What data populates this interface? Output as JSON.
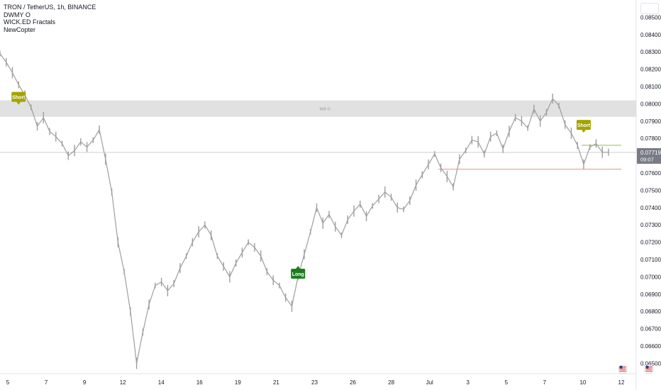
{
  "legend": {
    "symbol": "TRON / TetherUS, 1h, BINANCE",
    "indicator_1": "DWMY O",
    "indicator_2": "WICK.ED Fractals",
    "indicator_3": "NewCopter"
  },
  "zone": {
    "label": "IMB D",
    "low": 0.07925,
    "high": 0.0802,
    "color": "#dcdcdc"
  },
  "current_price": {
    "value": "0.07719",
    "countdown": "09:07",
    "price": 0.07719
  },
  "colors": {
    "candle": "#9e9e9e",
    "short_marker": "#a3a400",
    "long_marker": "#1b7d1f",
    "support_line": "#f28b8b",
    "resistance_line": "#8bc34a",
    "current_tag": "#787b86"
  },
  "chart_data": {
    "type": "line",
    "title": "TRON / TetherUS, 1h, BINANCE",
    "xlabel": "",
    "ylabel": "",
    "x_ticks": [
      "5",
      "7",
      "9",
      "12",
      "14",
      "16",
      "19",
      "21",
      "23",
      "26",
      "28",
      "Jul",
      "3",
      "5",
      "7",
      "10",
      "12"
    ],
    "y_ticks": [
      "0.06500",
      "0.06600",
      "0.06700",
      "0.06800",
      "0.06900",
      "0.07000",
      "0.07100",
      "0.07200",
      "0.07300",
      "0.07400",
      "0.07500",
      "0.07600",
      "0.07700",
      "0.07800",
      "0.07900",
      "0.08000",
      "0.08100",
      "0.08200",
      "0.08300",
      "0.08400",
      "0.08500"
    ],
    "ylim": [
      0.0644,
      0.086
    ],
    "grid": false,
    "series": [
      {
        "values": [
          0.0829,
          0.0824,
          0.0818,
          0.0811,
          0.0805,
          0.0798,
          0.0787,
          0.0792,
          0.0784,
          0.0781,
          0.0777,
          0.077,
          0.0773,
          0.0778,
          0.0775,
          0.0779,
          0.0785,
          0.0768,
          0.0749,
          0.072,
          0.0703,
          0.068,
          0.065,
          0.0668,
          0.0684,
          0.0695,
          0.0697,
          0.0692,
          0.0696,
          0.0705,
          0.0712,
          0.072,
          0.0726,
          0.073,
          0.0724,
          0.0712,
          0.0706,
          0.07,
          0.0708,
          0.0714,
          0.072,
          0.0717,
          0.0712,
          0.0703,
          0.0698,
          0.0695,
          0.0688,
          0.0683,
          0.07,
          0.0713,
          0.0726,
          0.074,
          0.0731,
          0.0736,
          0.0729,
          0.0724,
          0.0733,
          0.0738,
          0.0742,
          0.0735,
          0.0741,
          0.0745,
          0.0749,
          0.0746,
          0.074,
          0.0739,
          0.0744,
          0.0753,
          0.0759,
          0.0765,
          0.0771,
          0.0763,
          0.0758,
          0.0752,
          0.0768,
          0.0773,
          0.0779,
          0.0778,
          0.0771,
          0.0781,
          0.0783,
          0.0774,
          0.0784,
          0.0792,
          0.079,
          0.0786,
          0.0797,
          0.079,
          0.0795,
          0.0803,
          0.0799,
          0.0788,
          0.0783,
          0.0776,
          0.0765,
          0.0775,
          0.0777,
          0.0772,
          0.0772
        ]
      }
    ],
    "annotations": [
      {
        "label": "Short",
        "index": 3,
        "price": 0.0804
      },
      {
        "label": "Long",
        "index": 48,
        "price": 0.07018
      },
      {
        "label": "Short",
        "index": 94,
        "price": 0.07878
      }
    ],
    "levels": [
      {
        "name": "support",
        "price": 0.07622
      },
      {
        "name": "resistance",
        "price": 0.0774
      }
    ]
  }
}
